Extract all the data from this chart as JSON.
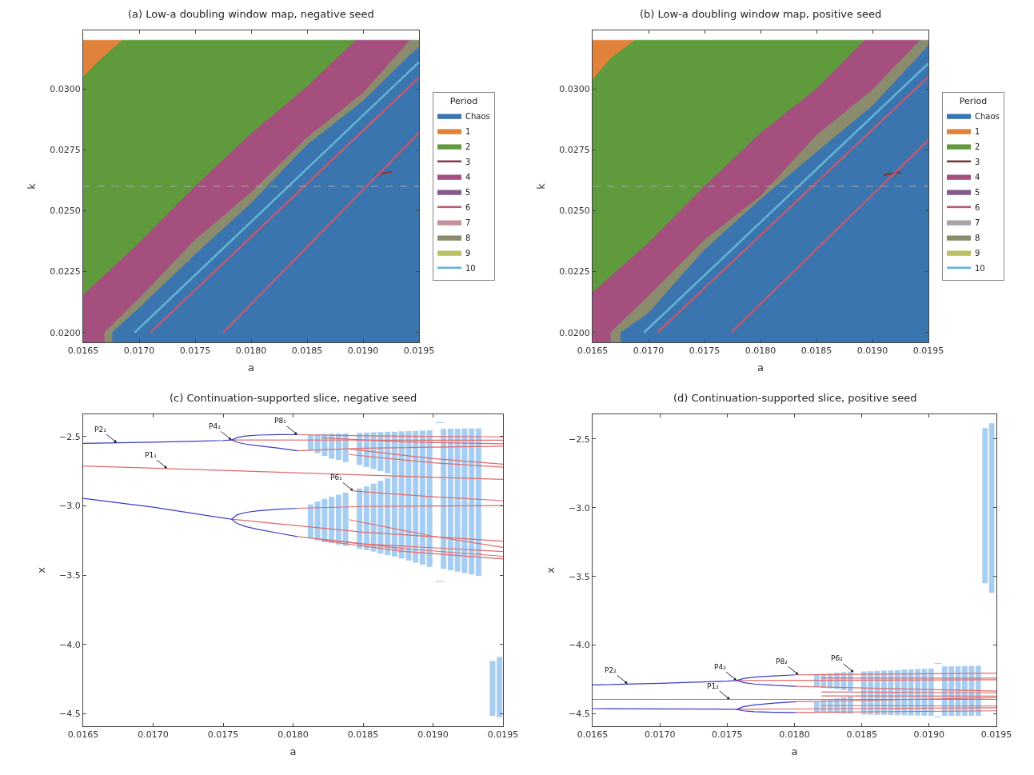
{
  "chart_data": [
    {
      "type": "area",
      "title": "(a) Low-a doubling window map, negative seed",
      "xlabel": "a",
      "ylabel": "k",
      "xlim": [
        0.0165,
        0.0195
      ],
      "xticks": [
        0.0165,
        {
          "value": 0.017,
          "label": "0.0170"
        },
        0.0175,
        {
          "value": 0.018,
          "label": "0.0180"
        },
        0.0185,
        {
          "value": 0.019,
          "label": "0.0190"
        },
        0.0195
      ],
      "ylim": [
        0.0196,
        0.0324
      ],
      "yticks": [
        {
          "value": 0.02,
          "label": "0.0200"
        },
        {
          "value": 0.0225,
          "label": "0.0225"
        },
        {
          "value": 0.025,
          "label": "0.0250"
        },
        {
          "value": 0.0275,
          "label": "0.0275"
        },
        {
          "value": 0.03,
          "label": "0.0300"
        }
      ],
      "legend": "right",
      "legend_title": "Period",
      "ref_lines": [
        {
          "axis": "y",
          "value": 0.026,
          "color": "#a8a8a8",
          "line_style": "dashed"
        }
      ],
      "series": [
        {
          "name": "Chaos",
          "type": "area",
          "color": "#3a75b0",
          "x": [
            0.01676,
            0.017,
            0.0175,
            0.018,
            0.0185,
            0.019,
            0.01942,
            0.0195
          ],
          "values": [
            0.02,
            0.021,
            0.0232,
            0.0253,
            0.0277,
            0.0295,
            0.0314,
            0.03173
          ]
        },
        {
          "name": "1",
          "type": "area",
          "color": "#e0823a",
          "x": [
            0.0165,
            0.01685
          ],
          "values": [
            0.032,
            0.032
          ]
        },
        {
          "name": "2",
          "type": "area",
          "color": "#5f9a3c",
          "x": [
            0.0165,
            0.01663,
            0.01685,
            0.018936
          ],
          "values": [
            0.03049,
            0.0311,
            0.032,
            0.032
          ]
        },
        {
          "name": "3",
          "type": "line",
          "color": "#8a3a4c",
          "x": [
            0.01911,
            0.01926
          ],
          "values": [
            0.02648,
            0.02661
          ]
        },
        {
          "name": "4",
          "type": "area",
          "color": "#a54f7e",
          "x": [
            0.0165,
            0.017,
            0.0175,
            0.018,
            0.0185,
            0.018936,
            0.01942
          ],
          "values": [
            0.02154,
            0.02368,
            0.026,
            0.02816,
            0.03009,
            0.032,
            0.032
          ]
        },
        {
          "name": "5",
          "type": "area",
          "color": "#845c8c"
        },
        {
          "name": "6",
          "type": "line",
          "color": "#b95c74",
          "x": [
            0.0171,
            0.0195,
            null,
            0.01775,
            0.0195
          ],
          "values": [
            0.02,
            0.03047,
            null,
            0.02,
            0.0282
          ]
        },
        {
          "name": "7",
          "type": "area",
          "color": "#c4919c"
        },
        {
          "name": "8",
          "type": "area",
          "color": "#8b8b6e",
          "x": [
            0.01669,
            0.017,
            0.0175,
            0.018,
            0.0185,
            0.019,
            0.01942,
            0.0195
          ],
          "values": [
            0.02,
            0.0214,
            0.0238,
            0.02575,
            0.028,
            0.02983,
            0.032,
            0.032
          ]
        },
        {
          "name": "9",
          "type": "area",
          "color": "#b9c162"
        },
        {
          "name": "10",
          "type": "line",
          "color": "#62b3d4",
          "x": [
            0.01696,
            0.0195
          ],
          "values": [
            0.02,
            0.0311
          ]
        }
      ]
    },
    {
      "type": "area",
      "title": "(b) Low-a doubling window map, positive seed",
      "xlabel": "a",
      "ylabel": "k",
      "xlim": [
        0.0165,
        0.0195
      ],
      "xticks": [
        0.0165,
        {
          "value": 0.017,
          "label": "0.0170"
        },
        0.0175,
        {
          "value": 0.018,
          "label": "0.0180"
        },
        0.0185,
        {
          "value": 0.019,
          "label": "0.0190"
        },
        0.0195
      ],
      "ylim": [
        0.0196,
        0.0324
      ],
      "yticks": [
        {
          "value": 0.02,
          "label": "0.0200"
        },
        {
          "value": 0.0225,
          "label": "0.0225"
        },
        {
          "value": 0.025,
          "label": "0.0250"
        },
        {
          "value": 0.0275,
          "label": "0.0275"
        },
        {
          "value": 0.03,
          "label": "0.0300"
        }
      ],
      "legend": "right",
      "legend_title": "Period",
      "ref_lines": [
        {
          "axis": "y",
          "value": 0.026,
          "color": "#a8a8a8",
          "line_style": "dashed"
        }
      ],
      "series": [
        {
          "name": "Chaos",
          "type": "area",
          "color": "#3a75b0",
          "x": [
            0.016751,
            0.017,
            0.0175,
            0.018,
            0.0185,
            0.019,
            0.019425,
            0.0195
          ],
          "values": [
            0.02,
            0.0208,
            0.0234,
            0.02546,
            0.0274,
            0.0293,
            0.0314,
            0.0318
          ]
        },
        {
          "name": "1",
          "type": "area",
          "color": "#e0823a",
          "x": [
            0.0165,
            0.01688
          ],
          "values": [
            0.032,
            0.032
          ]
        },
        {
          "name": "2",
          "type": "area",
          "color": "#5f9a3c",
          "x": [
            0.0165,
            0.01666,
            0.01688,
            0.018932
          ],
          "values": [
            0.03037,
            0.03125,
            0.032,
            0.032
          ]
        },
        {
          "name": "3",
          "type": "line",
          "color": "#7d3a3a",
          "x": [
            0.0191,
            0.01925
          ],
          "values": [
            0.02647,
            0.02658
          ]
        },
        {
          "name": "4",
          "type": "area",
          "color": "#a54f7e",
          "x": [
            0.0165,
            0.017,
            0.0175,
            0.018,
            0.0185,
            0.018932,
            0.019425
          ],
          "values": [
            0.02164,
            0.02368,
            0.026,
            0.02818,
            0.03,
            0.032,
            0.032
          ]
        },
        {
          "name": "5",
          "type": "area",
          "color": "#845c8c"
        },
        {
          "name": "6",
          "type": "line",
          "color": "#b95c74",
          "x": [
            0.01708,
            0.0195,
            null,
            0.017737,
            0.0195
          ],
          "values": [
            0.02,
            0.0305,
            null,
            0.02,
            0.0279
          ]
        },
        {
          "name": "7",
          "type": "area",
          "color": "#a9a1aa"
        },
        {
          "name": "8",
          "type": "area",
          "color": "#8b8b6e",
          "x": [
            0.016661,
            0.017,
            0.0175,
            0.018,
            0.0185,
            0.019,
            0.019425,
            0.0195
          ],
          "values": [
            0.02,
            0.0215,
            0.0238,
            0.0256,
            0.0281,
            0.02996,
            0.032,
            0.032
          ]
        },
        {
          "name": "9",
          "type": "area",
          "color": "#b9c162"
        },
        {
          "name": "10",
          "type": "line",
          "color": "#62b3d4",
          "x": [
            0.01696,
            0.0195
          ],
          "values": [
            0.02,
            0.03105
          ]
        }
      ]
    },
    {
      "type": "line",
      "title": "(c) Continuation-supported slice, negative seed",
      "xlabel": "a",
      "ylabel": "x",
      "xlim": [
        0.0165,
        0.0195
      ],
      "xticks": [
        0.0165,
        {
          "value": 0.017,
          "label": "0.0170"
        },
        0.0175,
        {
          "value": 0.018,
          "label": "0.0180"
        },
        0.0185,
        {
          "value": 0.019,
          "label": "0.0190"
        },
        0.0195
      ],
      "ylim": [
        -4.59,
        -2.34
      ],
      "yticks": [
        {
          "value": -4.5,
          "label": "−4.5"
        },
        {
          "value": -4,
          "label": "−4.0"
        },
        {
          "value": -3.5,
          "label": "−3.5"
        },
        {
          "value": -3,
          "label": "−3.0"
        },
        {
          "value": -2.5,
          "label": "−2.5"
        }
      ],
      "annotations": [
        {
          "text": "P2₁",
          "x": 0.01674,
          "y": -2.545
        },
        {
          "text": "P4₁",
          "x": 0.01756,
          "y": -2.525
        },
        {
          "text": "P8₁",
          "x": 0.01803,
          "y": -2.487
        },
        {
          "text": "P1₁",
          "x": 0.0171,
          "y": -2.73
        },
        {
          "text": "P6₁",
          "x": 0.01843,
          "y": -2.893
        }
      ],
      "series": [
        {
          "type": "bar",
          "color": "#a6cef2",
          "x": [
            0.018125,
            0.018175,
            0.018225,
            0.018275,
            0.018325,
            0.018375,
            0.018475,
            0.018525,
            0.018575,
            0.018625,
            0.018675
          ],
          "base": [
            -2.6,
            -2.62,
            -2.64,
            -2.66,
            -2.67,
            -2.685,
            -2.705,
            -2.72,
            -2.735,
            -2.75,
            -2.765
          ],
          "values": [
            0.114,
            0.137,
            0.16,
            0.181,
            0.192,
            0.208,
            0.231,
            0.248,
            0.265,
            0.282,
            0.299
          ]
        },
        {
          "type": "bar",
          "color": "#a6cef2",
          "x": [
            0.018125,
            0.018175,
            0.018225,
            0.018275,
            0.018325,
            0.018375,
            0.018475,
            0.018525,
            0.018575,
            0.018625,
            0.018675
          ],
          "base": [
            -3.235,
            -3.25,
            -3.262,
            -3.27,
            -3.28,
            -3.29,
            -3.31,
            -3.32,
            -3.33,
            -3.345,
            -3.355
          ],
          "values": [
            0.245,
            0.28,
            0.312,
            0.335,
            0.36,
            0.385,
            0.435,
            0.46,
            0.49,
            0.525,
            0.555
          ]
        },
        {
          "type": "bar",
          "color": "#a6cef2",
          "x": [
            0.018725,
            0.018775,
            0.018825,
            0.018875,
            0.018925,
            0.018975,
            0.019075,
            0.019125,
            0.019175,
            0.019225,
            0.019275,
            0.019325
          ],
          "base": [
            -3.365,
            -3.38,
            -3.395,
            -3.41,
            -3.425,
            -3.44,
            -3.455,
            -3.465,
            -3.475,
            -3.485,
            -3.495,
            -3.505
          ],
          "values": [
            0.9,
            0.917,
            0.934,
            0.951,
            0.968,
            0.985,
            1.01,
            1.021,
            1.031,
            1.042,
            1.052,
            1.063
          ]
        },
        {
          "type": "bar",
          "color": "#a6cef2",
          "x": [
            0.019425,
            0.019475
          ],
          "base": [
            -4.515,
            -4.525
          ],
          "values": [
            0.395,
            0.435
          ]
        },
        {
          "type": "line",
          "color": "#a6cef2",
          "x": [
            0.01902,
            0.01908
          ],
          "values": [
            -2.4,
            -2.4
          ]
        },
        {
          "type": "line",
          "color": "#a6cef2",
          "x": [
            0.01902,
            0.01908
          ],
          "values": [
            -3.545,
            -3.545
          ]
        },
        {
          "type": "line",
          "color": "#e06a6a",
          "x": [
            0.0165,
            0.0175,
            0.0185,
            0.0195
          ],
          "values": [
            -2.713,
            -2.745,
            -2.778,
            -2.809
          ]
        },
        {
          "type": "line",
          "color": "#e06a6a",
          "x": [
            0.01756,
            0.0185,
            0.0195
          ],
          "values": [
            -2.525,
            -2.526,
            -2.527
          ]
        },
        {
          "type": "line",
          "color": "#e06a6a",
          "x": [
            0.01803,
            0.0185,
            0.0195
          ],
          "values": [
            -2.487,
            -2.495,
            -2.503
          ]
        },
        {
          "type": "line",
          "color": "#e06a6a",
          "x": [
            0.01803,
            0.0185,
            0.0195
          ],
          "values": [
            -2.603,
            -2.585,
            -2.57
          ]
        },
        {
          "type": "line",
          "color": "#e06a6a",
          "x": [
            0.0184,
            0.019,
            0.0195
          ],
          "values": [
            -2.59,
            -2.66,
            -2.7
          ]
        },
        {
          "type": "line",
          "color": "#e06a6a",
          "x": [
            0.0184,
            0.019,
            0.0195
          ],
          "values": [
            -2.63,
            -2.69,
            -2.722
          ]
        },
        {
          "type": "line",
          "color": "#e06a6a",
          "x": [
            0.0182,
            0.0188,
            0.0195
          ],
          "values": [
            -2.51,
            -2.54,
            -2.553
          ]
        },
        {
          "type": "line",
          "color": "#e06a6a",
          "x": [
            0.01756,
            0.0185,
            0.0195
          ],
          "values": [
            -3.097,
            -3.19,
            -3.255
          ]
        },
        {
          "type": "line",
          "color": "#e06a6a",
          "x": [
            0.01803,
            0.0185,
            0.0195
          ],
          "values": [
            -3.018,
            -3.005,
            -2.998
          ]
        },
        {
          "type": "line",
          "color": "#e06a6a",
          "x": [
            0.01843,
            0.019,
            0.0195
          ],
          "values": [
            -2.893,
            -2.935,
            -2.963
          ]
        },
        {
          "type": "line",
          "color": "#e06a6a",
          "x": [
            0.01803,
            0.0185,
            0.0195
          ],
          "values": [
            -3.222,
            -3.275,
            -3.33
          ]
        },
        {
          "type": "line",
          "color": "#e06a6a",
          "x": [
            0.0184,
            0.019,
            0.0195
          ],
          "values": [
            -3.1,
            -3.22,
            -3.3
          ]
        },
        {
          "type": "line",
          "color": "#e06a6a",
          "x": [
            0.0182,
            0.0188,
            0.0195
          ],
          "values": [
            -3.24,
            -3.31,
            -3.364
          ]
        },
        {
          "type": "line",
          "color": "#e06a6a",
          "x": [
            0.0182,
            0.0188,
            0.0195
          ],
          "values": [
            -3.25,
            -3.33,
            -3.384
          ]
        },
        {
          "type": "line",
          "color": "#3b3bc8",
          "x": [
            0.0165,
            0.017,
            0.0175,
            0.01756,
            0.0176,
            0.01766,
            0.01775,
            0.0179,
            0.01803
          ],
          "values": [
            -2.55,
            -2.541,
            -2.529,
            -2.525,
            -2.508,
            -2.497,
            -2.49,
            -2.486,
            -2.487
          ]
        },
        {
          "type": "line",
          "color": "#3b3bc8",
          "x": [
            0.01756,
            0.0176,
            0.01766,
            0.01775,
            0.0179,
            0.01803
          ],
          "values": [
            -2.525,
            -2.542,
            -2.555,
            -2.567,
            -2.585,
            -2.603
          ]
        },
        {
          "type": "line",
          "color": "#3b3bc8",
          "x": [
            0.0165,
            0.017,
            0.0175,
            0.01756,
            0.0176,
            0.01766,
            0.01775,
            0.0179,
            0.01803
          ],
          "values": [
            -2.946,
            -3.01,
            -3.088,
            -3.097,
            -3.128,
            -3.15,
            -3.17,
            -3.198,
            -3.222
          ]
        },
        {
          "type": "line",
          "color": "#3b3bc8",
          "x": [
            0.01756,
            0.0176,
            0.01766,
            0.01775,
            0.0179,
            0.01803
          ],
          "values": [
            -3.097,
            -3.065,
            -3.048,
            -3.036,
            -3.024,
            -3.018
          ]
        }
      ]
    },
    {
      "type": "line",
      "title": "(d) Continuation-supported slice, positive seed",
      "xlabel": "a",
      "ylabel": "x",
      "xlim": [
        0.0165,
        0.0195
      ],
      "xticks": [
        0.0165,
        {
          "value": 0.017,
          "label": "0.0170"
        },
        0.0175,
        {
          "value": 0.018,
          "label": "0.0180"
        },
        0.0185,
        {
          "value": 0.019,
          "label": "0.0190"
        },
        0.0195
      ],
      "ylim": [
        -4.59,
        -2.32
      ],
      "yticks": [
        {
          "value": -4.5,
          "label": "−4.5"
        },
        {
          "value": -4,
          "label": "−4.0"
        },
        {
          "value": -3.5,
          "label": "−3.5"
        },
        {
          "value": -3,
          "label": "−3.0"
        },
        {
          "value": -2.5,
          "label": "−2.5"
        }
      ],
      "annotations": [
        {
          "text": "P2₂",
          "x": 0.01676,
          "y": -4.281
        },
        {
          "text": "P4₂",
          "x": 0.01757,
          "y": -4.257
        },
        {
          "text": "P8₂",
          "x": 0.01803,
          "y": -4.216
        },
        {
          "text": "P1₂",
          "x": 0.01752,
          "y": -4.395
        },
        {
          "text": "P6₂",
          "x": 0.01844,
          "y": -4.197
        }
      ],
      "series": [
        {
          "type": "bar",
          "color": "#a6cef2",
          "x": [
            0.018165,
            0.018215,
            0.018265,
            0.018315,
            0.018365,
            0.018415
          ],
          "base": [
            -4.3,
            -4.31,
            -4.315,
            -4.32,
            -4.328,
            -4.335
          ],
          "values": [
            0.086,
            0.101,
            0.111,
            0.12,
            0.132,
            0.142
          ]
        },
        {
          "type": "bar",
          "color": "#a6cef2",
          "x": [
            0.018165,
            0.018215,
            0.018265,
            0.018315,
            0.018365,
            0.018415
          ],
          "base": [
            -4.49,
            -4.492,
            -4.494,
            -4.496,
            -4.498,
            -4.5
          ],
          "values": [
            0.08,
            0.092,
            0.101,
            0.109,
            0.118,
            0.128
          ]
        },
        {
          "type": "bar",
          "color": "#a6cef2",
          "x": [
            0.018515,
            0.018565,
            0.018615,
            0.018665,
            0.018715,
            0.018765,
            0.018815,
            0.018865,
            0.018915,
            0.018965,
            0.019015
          ],
          "base": [
            -4.505,
            -4.506,
            -4.507,
            -4.508,
            -4.509,
            -4.51,
            -4.511,
            -4.512,
            -4.512,
            -4.513,
            -4.514
          ],
          "values": [
            0.314,
            0.317,
            0.32,
            0.323,
            0.326,
            0.329,
            0.333,
            0.336,
            0.338,
            0.341,
            0.344
          ]
        },
        {
          "type": "bar",
          "color": "#a6cef2",
          "x": [
            0.019115,
            0.019165,
            0.019215,
            0.019265,
            0.019315,
            0.019365
          ],
          "base": [
            -4.514,
            -4.514,
            -4.514,
            -4.514,
            -4.514,
            -4.514
          ],
          "values": [
            0.359,
            0.36,
            0.361,
            0.362,
            0.363,
            0.364
          ]
        },
        {
          "type": "bar",
          "color": "#a6cef2",
          "x": [
            0.019415,
            0.019465
          ],
          "base": [
            -3.55,
            -3.62
          ],
          "values": [
            1.13,
            1.235
          ]
        },
        {
          "type": "line",
          "color": "#a6cef2",
          "x": [
            0.01904,
            0.01909
          ],
          "values": [
            -4.133,
            -4.133
          ]
        },
        {
          "type": "line",
          "color": "#a6cef2",
          "x": [
            0.01904,
            0.01909
          ],
          "values": [
            -4.521,
            -4.521
          ]
        },
        {
          "type": "line",
          "color": "#e06a6a",
          "x": [
            0.0165,
            0.0195
          ],
          "values": [
            -4.395,
            -4.395
          ]
        },
        {
          "type": "line",
          "color": "#e06a6a",
          "x": [
            0.01757,
            0.0195
          ],
          "values": [
            -4.257,
            -4.252
          ]
        },
        {
          "type": "line",
          "color": "#e06a6a",
          "x": [
            0.01757,
            0.0195
          ],
          "values": [
            -4.467,
            -4.455
          ]
        },
        {
          "type": "line",
          "color": "#e06a6a",
          "x": [
            0.01801,
            0.0195
          ],
          "values": [
            -4.216,
            -4.204
          ]
        },
        {
          "type": "line",
          "color": "#e06a6a",
          "x": [
            0.01801,
            0.0195
          ],
          "values": [
            -4.3,
            -4.335
          ]
        },
        {
          "type": "line",
          "color": "#e06a6a",
          "x": [
            0.01801,
            0.0195
          ],
          "values": [
            -4.412,
            -4.383
          ]
        },
        {
          "type": "line",
          "color": "#e06a6a",
          "x": [
            0.01801,
            0.0195
          ],
          "values": [
            -4.49,
            -4.478
          ]
        },
        {
          "type": "line",
          "color": "#e06a6a",
          "x": [
            0.0182,
            0.0195
          ],
          "values": [
            -4.24,
            -4.24
          ]
        },
        {
          "type": "line",
          "color": "#e06a6a",
          "x": [
            0.0182,
            0.0195
          ],
          "values": [
            -4.34,
            -4.347
          ]
        },
        {
          "type": "line",
          "color": "#e06a6a",
          "x": [
            0.0182,
            0.0195
          ],
          "values": [
            -4.37,
            -4.371
          ]
        },
        {
          "type": "line",
          "color": "#e06a6a",
          "x": [
            0.0182,
            0.0195
          ],
          "values": [
            -4.44,
            -4.443
          ]
        },
        {
          "type": "line",
          "color": "#3b3bc8",
          "x": [
            0.0165,
            0.017,
            0.0175,
            0.01757,
            0.01762,
            0.0177,
            0.01785,
            0.01801
          ],
          "values": [
            -4.29,
            -4.278,
            -4.262,
            -4.257,
            -4.243,
            -4.233,
            -4.224,
            -4.216
          ]
        },
        {
          "type": "line",
          "color": "#3b3bc8",
          "x": [
            0.01757,
            0.01762,
            0.0177,
            0.01785,
            0.01801
          ],
          "values": [
            -4.257,
            -4.272,
            -4.283,
            -4.293,
            -4.3
          ]
        },
        {
          "type": "line",
          "color": "#3b3bc8",
          "x": [
            0.0165,
            0.017,
            0.0175,
            0.01757,
            0.01762,
            0.0177,
            0.01785,
            0.01801
          ],
          "values": [
            -4.462,
            -4.464,
            -4.466,
            -4.467,
            -4.478,
            -4.485,
            -4.489,
            -4.49
          ]
        },
        {
          "type": "line",
          "color": "#3b3bc8",
          "x": [
            0.01757,
            0.01762,
            0.0177,
            0.01785,
            0.01801
          ],
          "values": [
            -4.467,
            -4.448,
            -4.435,
            -4.422,
            -4.412
          ]
        }
      ]
    }
  ]
}
